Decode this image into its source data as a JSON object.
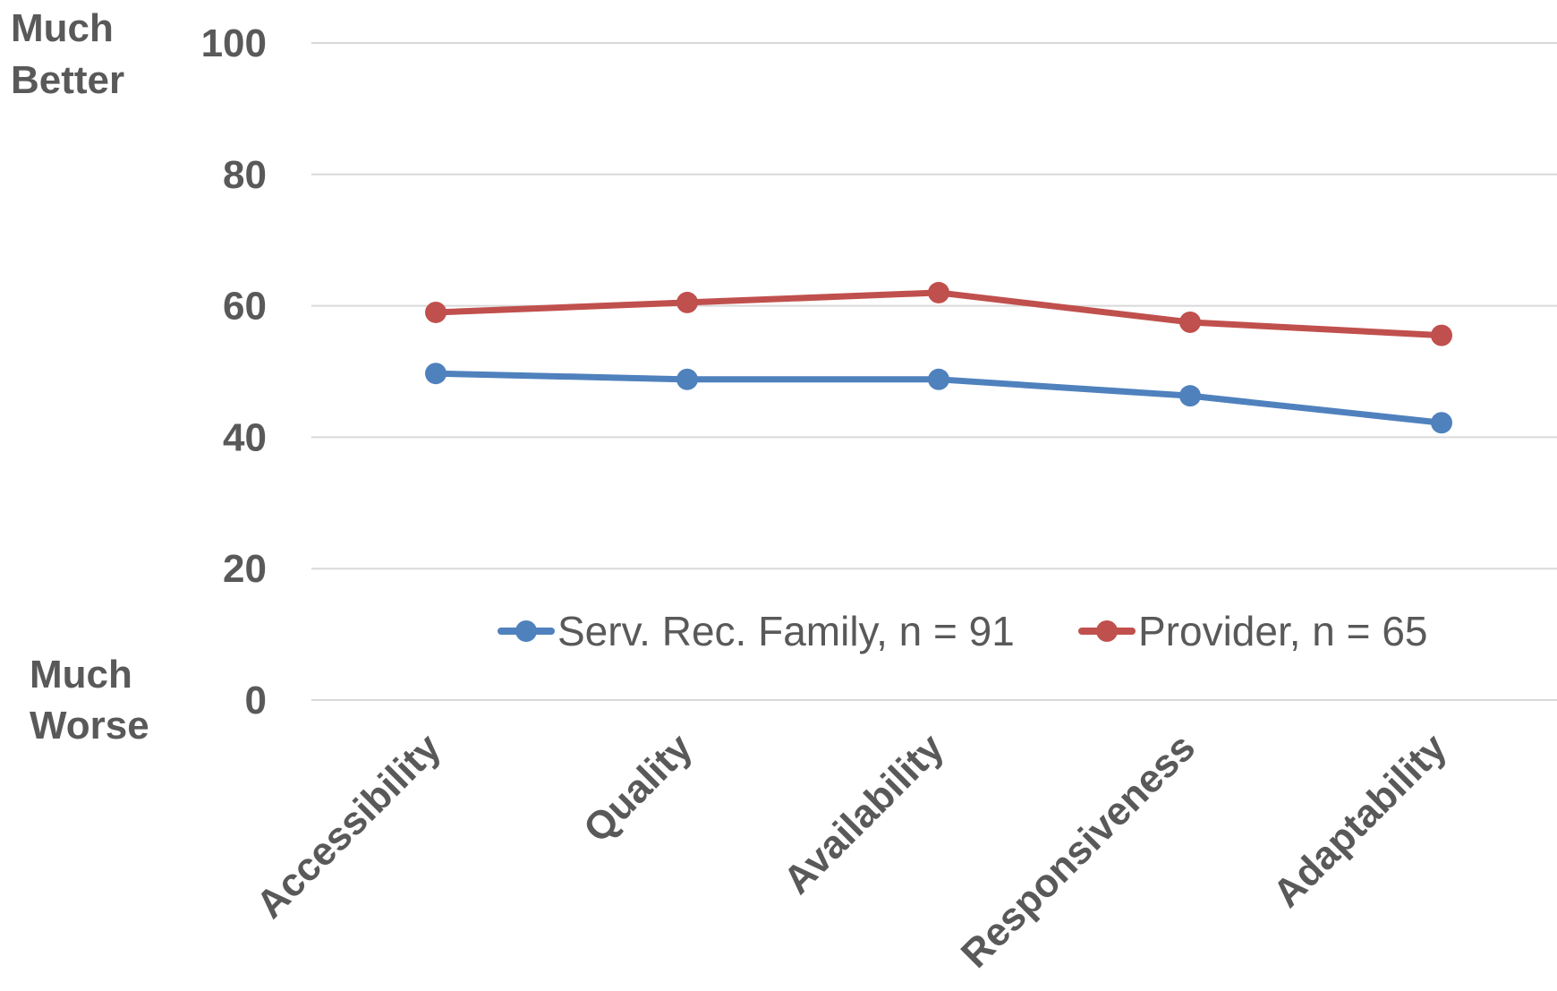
{
  "chart_data": {
    "type": "line",
    "categories": [
      "Accessibility",
      "Quality",
      "Availability",
      "Responsiveness",
      "Adaptability"
    ],
    "series": [
      {
        "name": "Serv. Rec. Family, n = 91",
        "color": "#4F81BD",
        "values": [
          49.7,
          48.8,
          48.8,
          46.3,
          42.2
        ]
      },
      {
        "name": "Provider, n = 65",
        "color": "#C0504D",
        "values": [
          59.0,
          60.5,
          62.0,
          57.5,
          55.5
        ]
      }
    ],
    "y_ticks": [
      "0",
      "20",
      "40",
      "60",
      "80",
      "100"
    ],
    "ylim": [
      0,
      100
    ],
    "y_top_label": [
      "Much",
      "Better"
    ],
    "y_bottom_label": [
      "Much",
      "Worse"
    ],
    "grid": true,
    "legend_position": "bottom-center"
  }
}
